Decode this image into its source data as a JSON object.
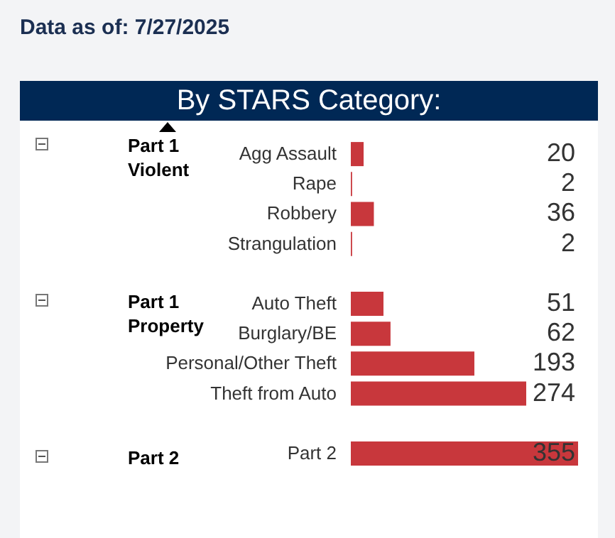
{
  "chart_data": {
    "type": "bar",
    "orientation": "horizontal",
    "title": "By STARS Category:",
    "subtitle": "Data as of: 7/27/2025",
    "categories": [
      "Agg Assault",
      "Rape",
      "Robbery",
      "Strangulation",
      null,
      "Auto Theft",
      "Burglary/BE",
      "Personal/Other Theft",
      "Theft from Auto",
      null,
      "Part 2"
    ],
    "values": [
      20,
      2,
      36,
      2,
      null,
      51,
      62,
      193,
      274,
      null,
      355
    ],
    "color": "#c8373c",
    "data_labels": true,
    "annotations": [
      "Part 1 Violent",
      "Part 1 Property",
      "Part 2"
    ]
  }
}
